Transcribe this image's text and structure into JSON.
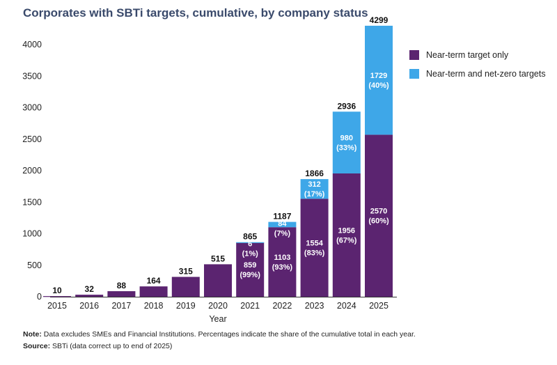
{
  "chart_data": {
    "type": "bar",
    "stacked": true,
    "title": "Corporates with SBTi targets, cumulative, by company status",
    "xlabel": "Year",
    "ylabel": "",
    "ylim": [
      0,
      4300
    ],
    "yticks": [
      0,
      500,
      1000,
      1500,
      2000,
      2500,
      3000,
      3500,
      4000
    ],
    "categories": [
      "2015",
      "2016",
      "2017",
      "2018",
      "2019",
      "2020",
      "2021",
      "2022",
      "2023",
      "2024",
      "2025"
    ],
    "totals": [
      10,
      32,
      88,
      164,
      315,
      515,
      865,
      1187,
      1866,
      2936,
      4299
    ],
    "series": [
      {
        "name": "Near-term target only",
        "color": "#5b2470",
        "values": [
          10,
          32,
          88,
          164,
          315,
          515,
          859,
          1103,
          1554,
          1956,
          2570
        ],
        "labels": [
          null,
          null,
          null,
          null,
          null,
          null,
          [
            "859",
            "(99%)"
          ],
          [
            "1103",
            "(93%)"
          ],
          [
            "1554",
            "(83%)"
          ],
          [
            "1956",
            "(67%)"
          ],
          [
            "2570",
            "(60%)"
          ]
        ]
      },
      {
        "name": "Near-term and net-zero targets",
        "color": "#3ea7e8",
        "values": [
          0,
          0,
          0,
          0,
          0,
          0,
          6,
          84,
          312,
          980,
          1729
        ],
        "labels": [
          null,
          null,
          null,
          null,
          null,
          null,
          [
            "6",
            "(1%)"
          ],
          [
            "84",
            "(7%)"
          ],
          [
            "312",
            "(17%)"
          ],
          [
            "980",
            "(33%)"
          ],
          [
            "1729",
            "(40%)"
          ]
        ]
      }
    ],
    "legend_position": "right",
    "grid": false
  },
  "footnotes": {
    "note_label": "Note:",
    "note_text": " Data excludes SMEs and Financial Institutions. Percentages indicate the share of the cumulative total in each year.",
    "source_label": "Source:",
    "source_text": " SBTi (data correct up to end of 2025)"
  }
}
